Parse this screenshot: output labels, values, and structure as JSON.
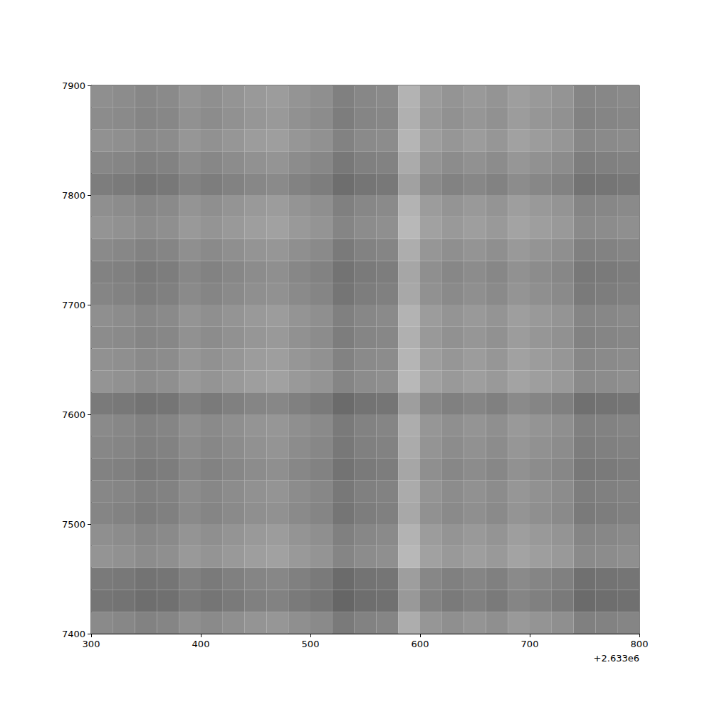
{
  "chart_data": {
    "type": "heatmap",
    "xlim": [
      2633300,
      2633800
    ],
    "ylim": [
      7400,
      7900
    ],
    "xticks": [
      {
        "value": 2633300,
        "label": "300"
      },
      {
        "value": 2633400,
        "label": "400"
      },
      {
        "value": 2633500,
        "label": "500"
      },
      {
        "value": 2633600,
        "label": "600"
      },
      {
        "value": 2633700,
        "label": "700"
      },
      {
        "value": 2633800,
        "label": "800"
      }
    ],
    "yticks": [
      7400,
      7500,
      7600,
      7700,
      7800,
      7900
    ],
    "annotations": [
      {
        "text": "+2.633e6"
      }
    ],
    "grid": false,
    "zlim": [
      0,
      1
    ],
    "x_bins": [
      2633300,
      2633320,
      2633340,
      2633360,
      2633380,
      2633400,
      2633420,
      2633440,
      2633460,
      2633480,
      2633500,
      2633520,
      2633540,
      2633560,
      2633580,
      2633600,
      2633620,
      2633640,
      2633660,
      2633680,
      2633700,
      2633720,
      2633740,
      2633760,
      2633780,
      2633800
    ],
    "y_bins": [
      7400,
      7420,
      7440,
      7460,
      7480,
      7500,
      7520,
      7540,
      7560,
      7580,
      7600,
      7620,
      7640,
      7660,
      7680,
      7700,
      7720,
      7740,
      7760,
      7780,
      7800,
      7820,
      7840,
      7860,
      7880,
      7900
    ],
    "cells": [
      [
        0.46,
        0.47,
        0.49,
        0.48,
        0.44,
        0.46,
        0.44,
        0.42,
        0.41,
        0.44,
        0.46,
        0.52,
        0.49,
        0.48,
        0.32,
        0.41,
        0.44,
        0.42,
        0.44,
        0.4,
        0.42,
        0.44,
        0.5,
        0.49,
        0.48
      ],
      [
        0.54,
        0.55,
        0.57,
        0.56,
        0.52,
        0.54,
        0.52,
        0.5,
        0.49,
        0.52,
        0.54,
        0.6,
        0.57,
        0.56,
        0.4,
        0.49,
        0.52,
        0.5,
        0.52,
        0.48,
        0.5,
        0.52,
        0.58,
        0.57,
        0.56
      ],
      [
        0.52,
        0.53,
        0.55,
        0.54,
        0.5,
        0.52,
        0.5,
        0.48,
        0.47,
        0.5,
        0.52,
        0.58,
        0.55,
        0.54,
        0.38,
        0.47,
        0.5,
        0.48,
        0.5,
        0.46,
        0.48,
        0.5,
        0.56,
        0.55,
        0.54
      ],
      [
        0.42,
        0.43,
        0.45,
        0.44,
        0.4,
        0.42,
        0.4,
        0.38,
        0.37,
        0.4,
        0.42,
        0.48,
        0.45,
        0.44,
        0.28,
        0.37,
        0.4,
        0.38,
        0.4,
        0.36,
        0.38,
        0.4,
        0.46,
        0.45,
        0.44
      ],
      [
        0.44,
        0.45,
        0.47,
        0.46,
        0.42,
        0.44,
        0.42,
        0.4,
        0.39,
        0.42,
        0.44,
        0.5,
        0.47,
        0.46,
        0.3,
        0.39,
        0.42,
        0.4,
        0.42,
        0.38,
        0.4,
        0.42,
        0.48,
        0.47,
        0.46
      ],
      [
        0.48,
        0.49,
        0.51,
        0.5,
        0.46,
        0.48,
        0.46,
        0.44,
        0.43,
        0.46,
        0.48,
        0.54,
        0.51,
        0.5,
        0.34,
        0.43,
        0.46,
        0.44,
        0.46,
        0.42,
        0.44,
        0.46,
        0.52,
        0.51,
        0.5
      ],
      [
        0.47,
        0.48,
        0.5,
        0.49,
        0.45,
        0.47,
        0.45,
        0.43,
        0.42,
        0.45,
        0.47,
        0.53,
        0.5,
        0.49,
        0.33,
        0.42,
        0.45,
        0.43,
        0.45,
        0.41,
        0.43,
        0.45,
        0.51,
        0.5,
        0.49
      ],
      [
        0.49,
        0.5,
        0.52,
        0.51,
        0.47,
        0.49,
        0.47,
        0.45,
        0.44,
        0.47,
        0.49,
        0.55,
        0.52,
        0.51,
        0.35,
        0.44,
        0.47,
        0.45,
        0.47,
        0.43,
        0.45,
        0.47,
        0.53,
        0.52,
        0.51
      ],
      [
        0.47,
        0.48,
        0.5,
        0.49,
        0.45,
        0.47,
        0.45,
        0.43,
        0.42,
        0.45,
        0.47,
        0.53,
        0.5,
        0.49,
        0.33,
        0.42,
        0.45,
        0.43,
        0.45,
        0.41,
        0.43,
        0.45,
        0.51,
        0.5,
        0.49
      ],
      [
        0.46,
        0.47,
        0.49,
        0.48,
        0.44,
        0.46,
        0.44,
        0.42,
        0.41,
        0.44,
        0.46,
        0.52,
        0.49,
        0.48,
        0.32,
        0.41,
        0.44,
        0.42,
        0.44,
        0.4,
        0.42,
        0.44,
        0.5,
        0.49,
        0.48
      ],
      [
        0.52,
        0.53,
        0.55,
        0.54,
        0.5,
        0.52,
        0.5,
        0.48,
        0.47,
        0.5,
        0.52,
        0.58,
        0.55,
        0.54,
        0.38,
        0.47,
        0.5,
        0.48,
        0.5,
        0.46,
        0.48,
        0.5,
        0.56,
        0.55,
        0.54
      ],
      [
        0.42,
        0.43,
        0.45,
        0.44,
        0.4,
        0.42,
        0.4,
        0.38,
        0.37,
        0.4,
        0.42,
        0.48,
        0.45,
        0.44,
        0.28,
        0.37,
        0.4,
        0.38,
        0.4,
        0.36,
        0.38,
        0.4,
        0.46,
        0.45,
        0.44
      ],
      [
        0.43,
        0.44,
        0.46,
        0.45,
        0.41,
        0.43,
        0.41,
        0.39,
        0.38,
        0.41,
        0.43,
        0.49,
        0.46,
        0.45,
        0.29,
        0.38,
        0.41,
        0.39,
        0.41,
        0.37,
        0.39,
        0.41,
        0.47,
        0.46,
        0.45
      ],
      [
        0.45,
        0.46,
        0.48,
        0.47,
        0.43,
        0.45,
        0.43,
        0.41,
        0.4,
        0.43,
        0.45,
        0.51,
        0.48,
        0.47,
        0.31,
        0.4,
        0.43,
        0.41,
        0.43,
        0.39,
        0.41,
        0.43,
        0.49,
        0.48,
        0.47
      ],
      [
        0.44,
        0.45,
        0.47,
        0.46,
        0.42,
        0.44,
        0.42,
        0.4,
        0.39,
        0.42,
        0.44,
        0.5,
        0.47,
        0.46,
        0.3,
        0.39,
        0.42,
        0.4,
        0.42,
        0.38,
        0.4,
        0.42,
        0.48,
        0.47,
        0.46
      ],
      [
        0.48,
        0.49,
        0.51,
        0.5,
        0.46,
        0.48,
        0.46,
        0.44,
        0.43,
        0.46,
        0.48,
        0.54,
        0.51,
        0.5,
        0.34,
        0.43,
        0.46,
        0.44,
        0.46,
        0.42,
        0.44,
        0.46,
        0.52,
        0.51,
        0.5
      ],
      [
        0.49,
        0.5,
        0.52,
        0.51,
        0.47,
        0.49,
        0.47,
        0.45,
        0.44,
        0.47,
        0.49,
        0.55,
        0.52,
        0.51,
        0.35,
        0.44,
        0.47,
        0.45,
        0.47,
        0.43,
        0.45,
        0.47,
        0.53,
        0.52,
        0.51
      ],
      [
        0.46,
        0.47,
        0.49,
        0.48,
        0.44,
        0.46,
        0.44,
        0.42,
        0.41,
        0.44,
        0.46,
        0.52,
        0.49,
        0.48,
        0.32,
        0.41,
        0.44,
        0.42,
        0.44,
        0.4,
        0.42,
        0.44,
        0.5,
        0.49,
        0.48
      ],
      [
        0.42,
        0.43,
        0.45,
        0.44,
        0.4,
        0.42,
        0.4,
        0.38,
        0.37,
        0.4,
        0.42,
        0.48,
        0.45,
        0.44,
        0.28,
        0.37,
        0.4,
        0.38,
        0.4,
        0.36,
        0.38,
        0.4,
        0.46,
        0.45,
        0.44
      ],
      [
        0.44,
        0.45,
        0.47,
        0.46,
        0.42,
        0.44,
        0.42,
        0.4,
        0.39,
        0.42,
        0.44,
        0.5,
        0.47,
        0.46,
        0.3,
        0.39,
        0.42,
        0.4,
        0.42,
        0.38,
        0.4,
        0.42,
        0.48,
        0.47,
        0.46
      ],
      [
        0.51,
        0.52,
        0.54,
        0.53,
        0.49,
        0.51,
        0.49,
        0.47,
        0.46,
        0.49,
        0.51,
        0.57,
        0.54,
        0.53,
        0.37,
        0.46,
        0.49,
        0.47,
        0.49,
        0.45,
        0.47,
        0.49,
        0.55,
        0.54,
        0.53
      ],
      [
        0.47,
        0.48,
        0.5,
        0.49,
        0.45,
        0.47,
        0.45,
        0.43,
        0.42,
        0.45,
        0.47,
        0.53,
        0.5,
        0.49,
        0.33,
        0.42,
        0.45,
        0.43,
        0.45,
        0.41,
        0.43,
        0.45,
        0.51,
        0.5,
        0.49
      ],
      [
        0.43,
        0.44,
        0.46,
        0.45,
        0.41,
        0.43,
        0.41,
        0.39,
        0.38,
        0.41,
        0.43,
        0.49,
        0.46,
        0.45,
        0.29,
        0.38,
        0.41,
        0.39,
        0.41,
        0.37,
        0.39,
        0.41,
        0.47,
        0.46,
        0.45
      ],
      [
        0.45,
        0.46,
        0.48,
        0.47,
        0.43,
        0.45,
        0.43,
        0.41,
        0.4,
        0.43,
        0.45,
        0.51,
        0.48,
        0.47,
        0.31,
        0.4,
        0.43,
        0.41,
        0.43,
        0.39,
        0.41,
        0.43,
        0.49,
        0.48,
        0.47
      ],
      [
        0.44,
        0.45,
        0.47,
        0.46,
        0.42,
        0.44,
        0.42,
        0.4,
        0.39,
        0.42,
        0.44,
        0.5,
        0.47,
        0.46,
        0.3,
        0.39,
        0.42,
        0.4,
        0.42,
        0.38,
        0.4,
        0.42,
        0.48,
        0.47,
        0.46
      ]
    ]
  }
}
